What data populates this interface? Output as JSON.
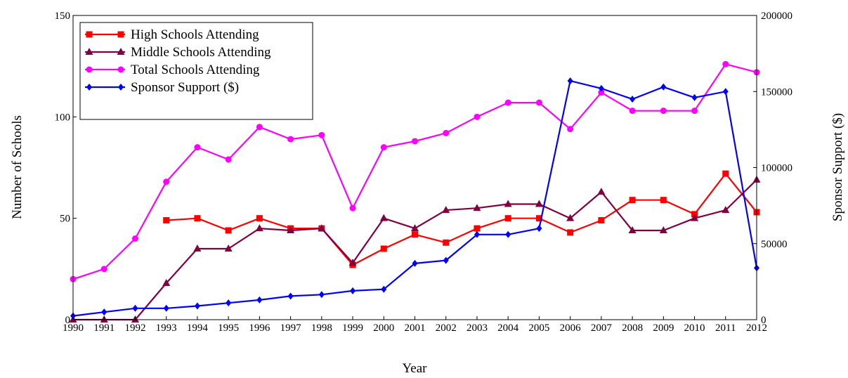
{
  "chart_data": {
    "type": "line",
    "title": "",
    "xlabel": "Year",
    "ylabel_left": "Number of Schools",
    "ylabel_right": "Sponsor Support ($)",
    "x": [
      1990,
      1991,
      1992,
      1993,
      1994,
      1995,
      1996,
      1997,
      1998,
      1999,
      2000,
      2001,
      2002,
      2003,
      2004,
      2005,
      2006,
      2007,
      2008,
      2009,
      2010,
      2011,
      2012
    ],
    "x_tick_labels": [
      "1990",
      "1991",
      "1992",
      "1993",
      "1994",
      "1995",
      "1996",
      "1997",
      "1998",
      "1999",
      "2000",
      "2001",
      "2002",
      "2003",
      "2004",
      "2005",
      "2006",
      "2007",
      "2008",
      "2009",
      "2010",
      "2011",
      "2012"
    ],
    "ylim_left": [
      0,
      150
    ],
    "yticks_left": [
      "0",
      "50",
      "100",
      "150"
    ],
    "ylim_right": [
      0,
      200000
    ],
    "yticks_right": [
      "0",
      "50000",
      "100000",
      "150000",
      "200000"
    ],
    "grid": false,
    "legend_position": "top-left",
    "series": [
      {
        "name": "High Schools Attending",
        "axis": "left",
        "color": "#ff0000",
        "marker": "square",
        "values": [
          null,
          null,
          null,
          49,
          50,
          44,
          50,
          45,
          45,
          27,
          35,
          42,
          38,
          45,
          50,
          50,
          43,
          49,
          59,
          59,
          52,
          72,
          53
        ]
      },
      {
        "name": "Middle Schools Attending",
        "axis": "left",
        "color": "#800040",
        "marker": "triangle",
        "values": [
          0,
          0,
          0,
          18,
          35,
          35,
          45,
          44,
          45,
          28,
          50,
          45,
          54,
          55,
          57,
          57,
          50,
          63,
          44,
          44,
          50,
          54,
          69
        ]
      },
      {
        "name": "Total Schools Attending",
        "axis": "left",
        "color": "#ff00ff",
        "marker": "circle",
        "values": [
          20,
          25,
          40,
          68,
          85,
          79,
          95,
          89,
          91,
          55,
          85,
          88,
          92,
          100,
          107,
          107,
          94,
          112,
          103,
          103,
          103,
          126,
          122
        ]
      },
      {
        "name": "Sponsor Support ($)",
        "axis": "right",
        "color": "#0000ff",
        "marker": "diamond",
        "values": [
          2500,
          5000,
          7500,
          7500,
          9000,
          11000,
          13000,
          15500,
          16500,
          19000,
          20000,
          37000,
          39000,
          56000,
          56000,
          60000,
          157000,
          152000,
          145000,
          153000,
          146000,
          150000,
          34000
        ]
      }
    ]
  }
}
